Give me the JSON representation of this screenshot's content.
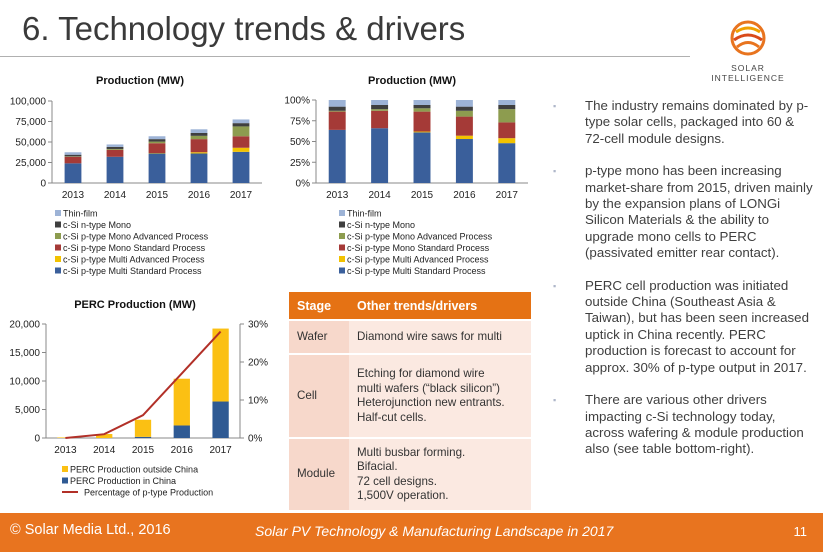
{
  "slide": {
    "title": "6. Technology trends & drivers",
    "logo_text_line1": "SOLAR",
    "logo_text_line2": "INTELLIGENCE"
  },
  "bullets": [
    "The industry remains dominated by p-type solar cells, packaged into 60 & 72-cell module designs.",
    "p-type mono has been increasing market-share from 2015, driven mainly by the expansion plans of LONGi Silicon Materials & the ability to upgrade mono cells to PERC (passivated emitter rear contact).",
    "PERC cell production was initiated outside China (Southeast Asia & Taiwan), but has been seen increased uptick in China recently. PERC production is forecast to account for approx. 30% of p-type output in 2017.",
    "There are various other drivers impacting c-Si technology today, across wafering & module production also (see table bottom-right)."
  ],
  "table": {
    "headers": [
      "Stage",
      "Other trends/drivers"
    ],
    "rows": [
      {
        "stage": "Wafer",
        "lines": [
          "Diamond wire saws for multi"
        ]
      },
      {
        "stage": "Cell",
        "lines": [
          "Etching for diamond wire",
          "multi wafers (“black silicon”)",
          "Heterojunction new entrants.",
          "Half-cut cells."
        ]
      },
      {
        "stage": "Module",
        "lines": [
          "Multi busbar forming.",
          "Bifacial.",
          "72 cell designs.",
          "1,500V operation."
        ]
      }
    ]
  },
  "footer": {
    "copyright": "© Solar Media Ltd., 2016",
    "subtitle": "Solar PV Technology & Manufacturing Landscape in 2017",
    "page": "11"
  },
  "colors": {
    "multi_standard": "#3a5f9b",
    "multi_advanced": "#f2c200",
    "mono_standard": "#a53a37",
    "mono_advanced": "#8d9c4f",
    "n_type_mono": "#3f3f3f",
    "thin_film": "#9db3d6",
    "perc_outside": "#fbc013",
    "perc_china": "#2f5a93",
    "perc_pct": "#b23028",
    "accent": "#e8741f"
  },
  "chart_data": [
    {
      "type": "bar",
      "stacked": true,
      "title": "Production (MW)",
      "categories": [
        "2013",
        "2014",
        "2015",
        "2016",
        "2017"
      ],
      "ylim": [
        0,
        100000
      ],
      "yticks": [
        "0",
        "25,000",
        "50,000",
        "75,000",
        "100,000"
      ],
      "ytick_values": [
        0,
        25000,
        50000,
        75000,
        100000
      ],
      "legend_position": "bottom",
      "series": [
        {
          "name": "c-Si p-type Multi Standard Process",
          "color_key": "multi_standard",
          "values": [
            24000,
            32000,
            36000,
            36000,
            38000
          ]
        },
        {
          "name": "c-Si p-type Multi Advanced Process",
          "color_key": "multi_advanced",
          "values": [
            0,
            0,
            500,
            1500,
            5000
          ]
        },
        {
          "name": "c-Si p-type Mono Standard Process",
          "color_key": "mono_standard",
          "values": [
            8000,
            8500,
            12000,
            16000,
            14000
          ]
        },
        {
          "name": "c-Si p-type Mono Advanced Process",
          "color_key": "mono_advanced",
          "values": [
            500,
            1000,
            2000,
            4000,
            12000
          ]
        },
        {
          "name": "c-Si n-type Mono",
          "color_key": "n_type_mono",
          "values": [
            2000,
            2500,
            3000,
            3500,
            4000
          ]
        },
        {
          "name": "Thin-film",
          "color_key": "thin_film",
          "values": [
            3000,
            3000,
            3500,
            4500,
            4500
          ]
        }
      ]
    },
    {
      "type": "bar",
      "stacked": true,
      "title": "Production (MW)",
      "categories": [
        "2013",
        "2014",
        "2015",
        "2016",
        "2017"
      ],
      "ylim": [
        0,
        100
      ],
      "yticks": [
        "0%",
        "25%",
        "50%",
        "75%",
        "100%"
      ],
      "ytick_values": [
        0,
        25,
        50,
        75,
        100
      ],
      "legend_position": "bottom",
      "series": [
        {
          "name": "c-Si p-type Multi Standard Process",
          "color_key": "multi_standard",
          "values": [
            64,
            66,
            61,
            53,
            48
          ]
        },
        {
          "name": "c-Si p-type Multi Advanced Process",
          "color_key": "multi_advanced",
          "values": [
            0,
            0,
            1,
            4,
            6
          ]
        },
        {
          "name": "c-Si p-type Mono Standard Process",
          "color_key": "mono_standard",
          "values": [
            22,
            21,
            24,
            23,
            19
          ]
        },
        {
          "name": "c-Si p-type Mono Advanced Process",
          "color_key": "mono_advanced",
          "values": [
            1,
            2,
            4,
            7,
            16
          ]
        },
        {
          "name": "c-Si n-type Mono",
          "color_key": "n_type_mono",
          "values": [
            5,
            5,
            4,
            5,
            5
          ]
        },
        {
          "name": "Thin-film",
          "color_key": "thin_film",
          "values": [
            8,
            6,
            6,
            8,
            6
          ]
        }
      ]
    },
    {
      "type": "bar",
      "stacked": true,
      "title": "PERC Production (MW)",
      "categories": [
        "2013",
        "2014",
        "2015",
        "2016",
        "2017"
      ],
      "ylim": [
        0,
        20000
      ],
      "yticks": [
        "0",
        "5,000",
        "10,000",
        "15,000",
        "20,000"
      ],
      "ytick_values": [
        0,
        5000,
        10000,
        15000,
        20000
      ],
      "y2lim": [
        0,
        30
      ],
      "y2ticks": [
        "0%",
        "10%",
        "20%",
        "30%"
      ],
      "y2tick_values": [
        0,
        10,
        20,
        30
      ],
      "legend_position": "bottom",
      "series": [
        {
          "name": "PERC Production in China",
          "color_key": "perc_china",
          "values": [
            0,
            0,
            200,
            2200,
            6400
          ]
        },
        {
          "name": "PERC Production outside China",
          "color_key": "perc_outside",
          "values": [
            100,
            700,
            3000,
            8200,
            12800
          ]
        }
      ],
      "line_series": {
        "name": "Percentage of p-type Production",
        "color_key": "perc_pct",
        "axis": "right",
        "values": [
          0,
          1,
          6,
          17,
          28
        ]
      },
      "legend_order": [
        "PERC Production outside China",
        "PERC Production in China",
        "Percentage of p-type Production"
      ]
    }
  ]
}
